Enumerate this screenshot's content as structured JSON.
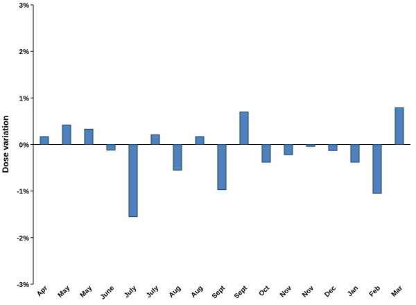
{
  "chart_data": {
    "type": "bar",
    "ylabel": "Dose variation",
    "xlabel": "",
    "ylim": [
      -3,
      3
    ],
    "yticks": [
      3,
      2,
      1,
      0,
      -1,
      -2,
      -3
    ],
    "ytick_labels": [
      "3%",
      "2%",
      "1%",
      "0%",
      "-1%",
      "-2%",
      "-3%"
    ],
    "categories": [
      "Apr",
      "May",
      "May",
      "June",
      "July",
      "July",
      "Aug",
      "Aug",
      "Sept",
      "Sept",
      "Oct",
      "Nov",
      "Nov",
      "Dec",
      "Jan",
      "Feb",
      "Mar"
    ],
    "values": [
      0.17,
      0.42,
      0.33,
      -0.12,
      -1.55,
      0.21,
      -0.55,
      0.17,
      -0.97,
      0.7,
      -0.38,
      -0.22,
      -0.04,
      -0.13,
      -0.38,
      -1.05,
      0.79
    ],
    "bar_color": "#4f81bd",
    "grid": false,
    "legend": "none"
  }
}
